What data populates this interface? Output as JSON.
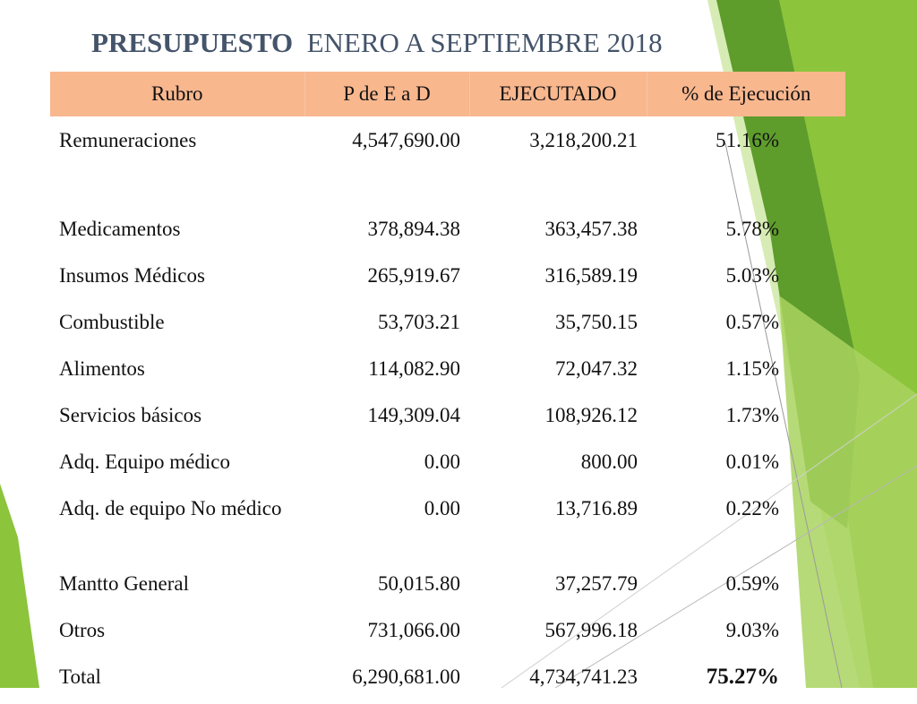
{
  "title": {
    "bold": "PRESUPUESTO",
    "rest": "ENERO A  SEPTIEMBRE  2018"
  },
  "header": {
    "col1": "Rubro",
    "col2": "P de E a D",
    "col3": "EJECUTADO",
    "col4": "% de Ejecución"
  },
  "rows": [
    {
      "rubro": "Remuneraciones",
      "pead": "4,547,690.00",
      "ejecutado": "3,218,200.21",
      "pct": "51.16%"
    },
    {
      "rubro": "Medicamentos",
      "pead": "378,894.38",
      "ejecutado": "363,457.38",
      "pct": "5.78%"
    },
    {
      "rubro": "Insumos Médicos",
      "pead": "265,919.67",
      "ejecutado": "316,589.19",
      "pct": "5.03%"
    },
    {
      "rubro": "Combustible",
      "pead": "53,703.21",
      "ejecutado": "35,750.15",
      "pct": "0.57%"
    },
    {
      "rubro": "Alimentos",
      "pead": "114,082.90",
      "ejecutado": "72,047.32",
      "pct": "1.15%"
    },
    {
      "rubro": "Servicios básicos",
      "pead": "149,309.04",
      "ejecutado": "108,926.12",
      "pct": "1.73%"
    },
    {
      "rubro": "Adq. Equipo médico",
      "pead": "0.00",
      "ejecutado": "800.00",
      "pct": "0.01%"
    },
    {
      "rubro": "Adq. de equipo No médico",
      "pead": "0.00",
      "ejecutado": "13,716.89",
      "pct": "0.22%"
    },
    {
      "rubro": "Mantto General",
      "pead": "50,015.80",
      "ejecutado": "37,257.79",
      "pct": "0.59%"
    },
    {
      "rubro": "Otros",
      "pead": "731,066.00",
      "ejecutado": "567,996.18",
      "pct": "9.03%"
    }
  ],
  "total": {
    "rubro": "Total",
    "pead": "6,290,681.00",
    "ejecutado": "4,734,741.23",
    "pct": "75.27%"
  },
  "colors": {
    "header_bg": "#f9b78e",
    "title": "#44546a",
    "green_dark": "#5e9c2c",
    "green_mid": "#8cc43c",
    "green_light": "#c9e49a"
  }
}
